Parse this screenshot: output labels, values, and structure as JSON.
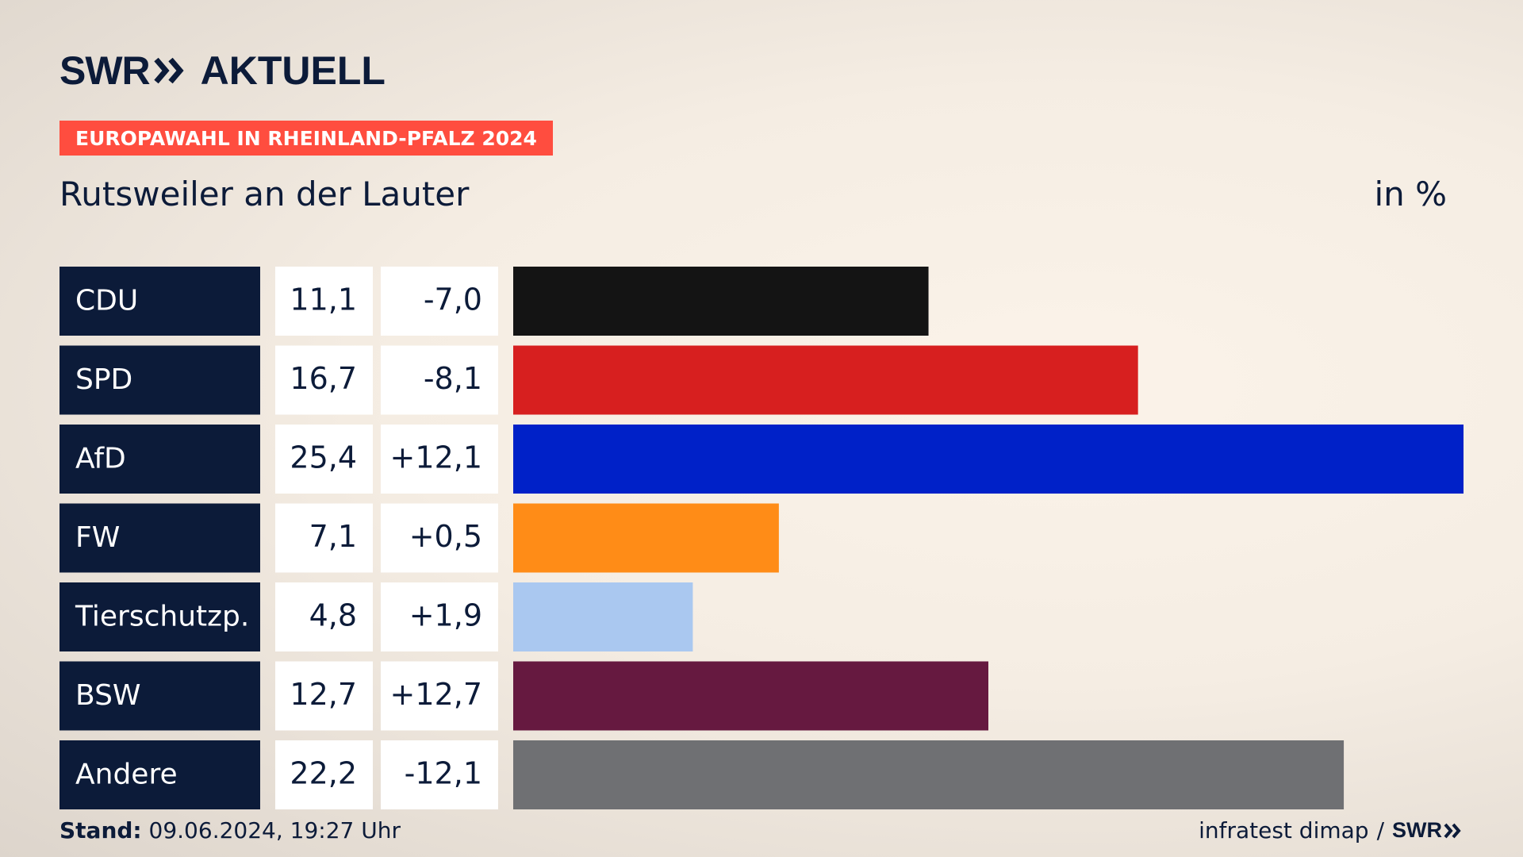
{
  "brand": {
    "name": "SWR",
    "program": "AKTUELL"
  },
  "badge": "EUROPAWAHL IN RHEINLAND-PFALZ 2024",
  "location": "Rutsweiler an der Lauter",
  "unit": "in %",
  "footer": {
    "stand_label": "Stand:",
    "stand_value": "09.06.2024, 19:27 Uhr",
    "source": "infratest dimap",
    "separator": "/",
    "logo": "SWR"
  },
  "colors": {
    "label_bg": "#0c1b39",
    "value_bg": "#ffffff"
  },
  "chart_data": {
    "type": "bar",
    "orientation": "horizontal",
    "categories": [
      "CDU",
      "SPD",
      "AfD",
      "FW",
      "Tierschutzp.",
      "BSW",
      "Andere"
    ],
    "values": [
      11.1,
      16.7,
      25.4,
      7.1,
      4.8,
      12.7,
      22.2
    ],
    "value_labels": [
      "11,1",
      "16,7",
      "25,4",
      "7,1",
      "4,8",
      "12,7",
      "22,2"
    ],
    "changes": [
      "-7,0",
      "-8,1",
      "+12,1",
      "+0,5",
      "+1,9",
      "+12,7",
      "-12,1"
    ],
    "colors": [
      "#141414",
      "#d71f1f",
      "#0021c8",
      "#ff8c17",
      "#aac8f0",
      "#661940",
      "#6f7073"
    ],
    "xlim": [
      0,
      25.4
    ]
  }
}
